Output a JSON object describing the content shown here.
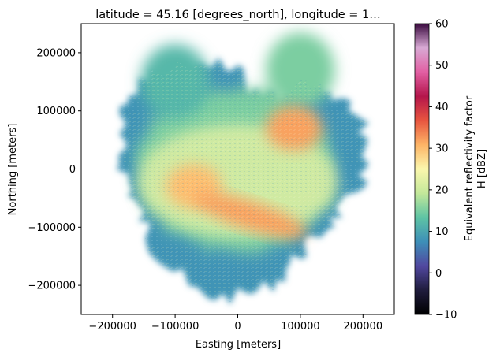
{
  "chart_data": {
    "type": "heatmap",
    "title": "latitude = 45.16 [degrees_north], longitude = 1…",
    "xlabel": "Easting [meters]",
    "ylabel": "Northing [meters]",
    "xlim": [
      -250000,
      250000
    ],
    "ylim": [
      -250000,
      250000
    ],
    "xticks": [
      -200000,
      -100000,
      0,
      100000,
      200000
    ],
    "xtick_labels": [
      "−200000",
      "−100000",
      "0",
      "100000",
      "200000"
    ],
    "yticks": [
      -200000,
      -100000,
      0,
      100000,
      200000
    ],
    "ytick_labels": [
      "−200000",
      "−100000",
      "0",
      "100000",
      "200000"
    ],
    "grid": false,
    "colorbar": {
      "label_line1": "Equivalent reflectivity factor",
      "label_line2": "H [dBZ]",
      "vmin": -10,
      "vmax": 60,
      "ticks": [
        -10,
        0,
        10,
        20,
        30,
        40,
        50,
        60
      ],
      "tick_labels": [
        "−10",
        "0",
        "10",
        "20",
        "30",
        "40",
        "50",
        "60"
      ],
      "colormap_stops": [
        "#000000",
        "#1f1c3c",
        "#5148a0",
        "#3d8fb8",
        "#5ec4a4",
        "#c3e89a",
        "#fbf7ad",
        "#fdb466",
        "#e8553f",
        "#b4154b",
        "#e25fa3",
        "#d8a9d4",
        "#3a0a3f"
      ]
    },
    "description_regions": [
      {
        "name": "echo-coverage",
        "center_easting": 0,
        "center_northing": 0,
        "radius": 230000,
        "typical_dbz": 15
      },
      {
        "name": "band-south",
        "center_easting": 20000,
        "center_northing": -80000,
        "typical_dbz": 32
      },
      {
        "name": "core-west",
        "center_easting": -70000,
        "center_northing": -30000,
        "typical_dbz": 30
      },
      {
        "name": "core-northeast",
        "center_easting": 90000,
        "center_northing": 70000,
        "typical_dbz": 32
      },
      {
        "name": "arm-north",
        "center_easting": 100000,
        "center_northing": 170000,
        "typical_dbz": 15
      },
      {
        "name": "arm-northwest",
        "center_easting": -100000,
        "center_northing": 150000,
        "typical_dbz": 12
      }
    ]
  }
}
